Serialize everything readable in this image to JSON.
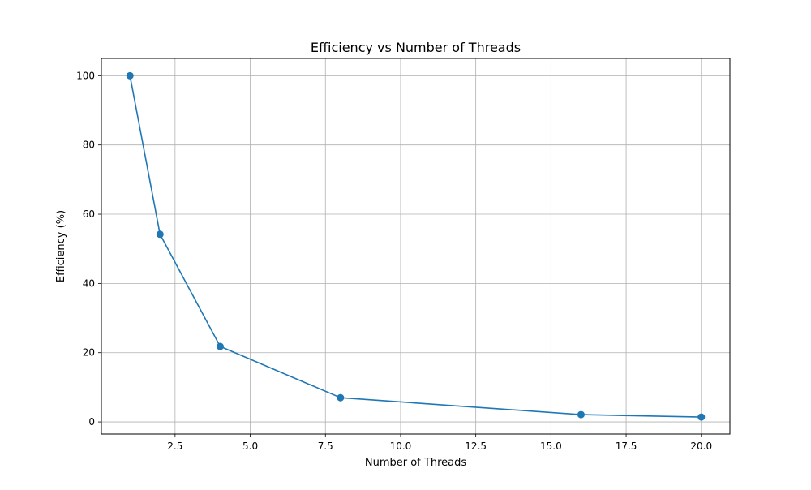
{
  "chart_data": {
    "type": "line",
    "title": "Efficiency vs Number of Threads",
    "xlabel": "Number of Threads",
    "ylabel": "Efficiency (%)",
    "x": [
      1,
      2,
      4,
      8,
      16,
      20
    ],
    "series": [
      {
        "values": [
          100,
          54.2,
          21.8,
          7.0,
          2.1,
          1.4
        ],
        "color": "#1f77b4",
        "marker": "circle"
      }
    ],
    "xlim": [
      0.05,
      20.95
    ],
    "ylim": [
      -3.5,
      105
    ],
    "xticks": [
      2.5,
      5.0,
      7.5,
      10.0,
      12.5,
      15.0,
      17.5,
      20.0
    ],
    "xtick_labels": [
      "2.5",
      "5.0",
      "7.5",
      "10.0",
      "12.5",
      "15.0",
      "17.5",
      "20.0"
    ],
    "yticks": [
      0,
      20,
      40,
      60,
      80,
      100
    ],
    "ytick_labels": [
      "0",
      "20",
      "40",
      "60",
      "80",
      "100"
    ],
    "grid": true,
    "grid_color": "#b0b0b0",
    "legend": "none"
  }
}
